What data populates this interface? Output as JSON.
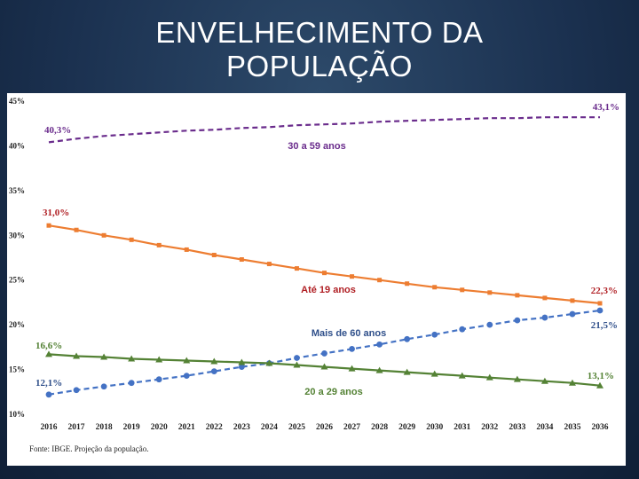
{
  "slide": {
    "title_line1": "ENVELHECIMENTO DA",
    "title_line2": "POPULAÇÃO"
  },
  "chart_data": {
    "type": "line",
    "title": "ENVELHECIMENTO DA POPULAÇÃO",
    "source": "Fonte: IBGE. Projeção da população.",
    "ylim": [
      10,
      45
    ],
    "yticks": [
      "10%",
      "15%",
      "20%",
      "25%",
      "30%",
      "35%",
      "40%",
      "45%"
    ],
    "categories": [
      "2016",
      "2017",
      "2018",
      "2019",
      "2020",
      "2021",
      "2022",
      "2023",
      "2024",
      "2025",
      "2026",
      "2027",
      "2028",
      "2029",
      "2030",
      "2031",
      "2032",
      "2033",
      "2034",
      "2035",
      "2036"
    ],
    "series": [
      {
        "name": "30 a 59 anos",
        "color": "#6a2c8c",
        "style": "dashed",
        "marker": "none",
        "values": [
          40.3,
          40.7,
          41.0,
          41.2,
          41.4,
          41.6,
          41.7,
          41.9,
          42.0,
          42.2,
          42.3,
          42.4,
          42.6,
          42.7,
          42.8,
          42.9,
          43.0,
          43.0,
          43.1,
          43.1,
          43.1
        ],
        "start_label": "40,3%",
        "end_label": "43,1%"
      },
      {
        "name": "Até 19 anos",
        "color": "#ed7d31",
        "style": "solid",
        "marker": "square",
        "values": [
          31.0,
          30.5,
          29.9,
          29.4,
          28.8,
          28.3,
          27.7,
          27.2,
          26.7,
          26.2,
          25.7,
          25.3,
          24.9,
          24.5,
          24.1,
          23.8,
          23.5,
          23.2,
          22.9,
          22.6,
          22.3
        ],
        "start_label": "31,0%",
        "end_label": "22,3%"
      },
      {
        "name": "Mais de 60 anos",
        "color": "#4472c4",
        "style": "dashed",
        "marker": "circle",
        "values": [
          12.1,
          12.6,
          13.0,
          13.4,
          13.8,
          14.2,
          14.7,
          15.2,
          15.6,
          16.2,
          16.7,
          17.2,
          17.7,
          18.3,
          18.8,
          19.4,
          19.9,
          20.4,
          20.7,
          21.1,
          21.5
        ],
        "start_label": "12,1%",
        "end_label": "21,5%"
      },
      {
        "name": "20 a 29 anos",
        "color": "#548235",
        "style": "solid",
        "marker": "triangle",
        "values": [
          16.6,
          16.4,
          16.3,
          16.1,
          16.0,
          15.9,
          15.8,
          15.7,
          15.6,
          15.4,
          15.2,
          15.0,
          14.8,
          14.6,
          14.4,
          14.2,
          14.0,
          13.8,
          13.6,
          13.4,
          13.1
        ],
        "start_label": "16,6%",
        "end_label": "13,1%"
      }
    ]
  }
}
